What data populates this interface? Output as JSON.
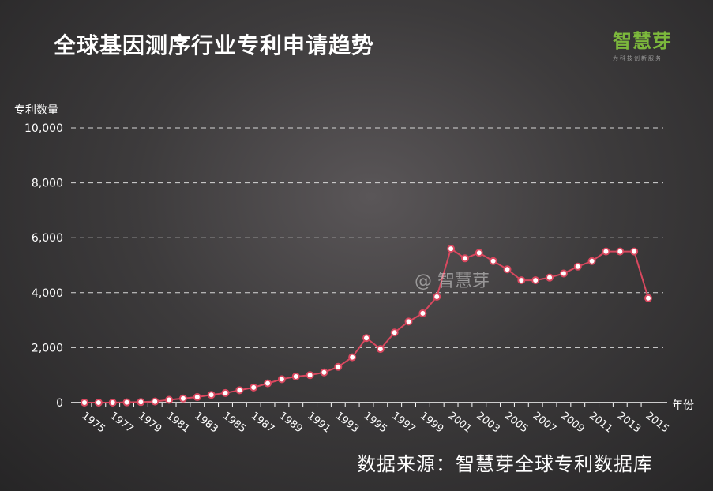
{
  "title": "全球基因测序行业专利申请趋势",
  "logo": {
    "name": "智慧芽",
    "tagline": "为科技创新服务",
    "color": "#7cb83c"
  },
  "watermark": "@ 智慧芽",
  "source": "数据来源：智慧芽全球专利数据库",
  "colors": {
    "line": "#d9485f",
    "marker_fill": "#ffffff",
    "grid": "#d8d8d8",
    "axis": "#ffffff"
  },
  "chart_data": {
    "type": "line",
    "xlabel": "年份",
    "ylabel": "专利数量",
    "ylim": [
      0,
      10000
    ],
    "yticks": [
      0,
      2000,
      4000,
      6000,
      8000,
      10000
    ],
    "ytick_labels": [
      "0",
      "2,000",
      "4,000",
      "6,000",
      "8,000",
      "10,000"
    ],
    "xtick_labels": [
      "1975",
      "1977",
      "1979",
      "1981",
      "1983",
      "1985",
      "1987",
      "1989",
      "1991",
      "1993",
      "1995",
      "1997",
      "1999",
      "2001",
      "2003",
      "2005",
      "2007",
      "2009",
      "2011",
      "2013",
      "2015"
    ],
    "grid": "horizontal dashed",
    "x": [
      1975,
      1976,
      1977,
      1978,
      1979,
      1980,
      1981,
      1982,
      1983,
      1984,
      1985,
      1986,
      1987,
      1988,
      1989,
      1990,
      1991,
      1992,
      1993,
      1994,
      1995,
      1996,
      1997,
      1998,
      1999,
      2000,
      2001,
      2002,
      2003,
      2004,
      2005,
      2006,
      2007,
      2008,
      2009,
      2010,
      2011,
      2012,
      2013,
      2014,
      2015
    ],
    "series": [
      {
        "values": [
          0,
          0,
          0,
          10,
          20,
          40,
          100,
          150,
          200,
          280,
          350,
          450,
          550,
          700,
          850,
          950,
          1000,
          1100,
          1300,
          1650,
          2350,
          1950,
          2550,
          2950,
          3250,
          3850,
          5600,
          5250,
          5450,
          5150,
          4850,
          4450,
          4450,
          4550,
          4700,
          4950,
          5150,
          5500,
          5500,
          5500,
          3800
        ]
      }
    ]
  }
}
